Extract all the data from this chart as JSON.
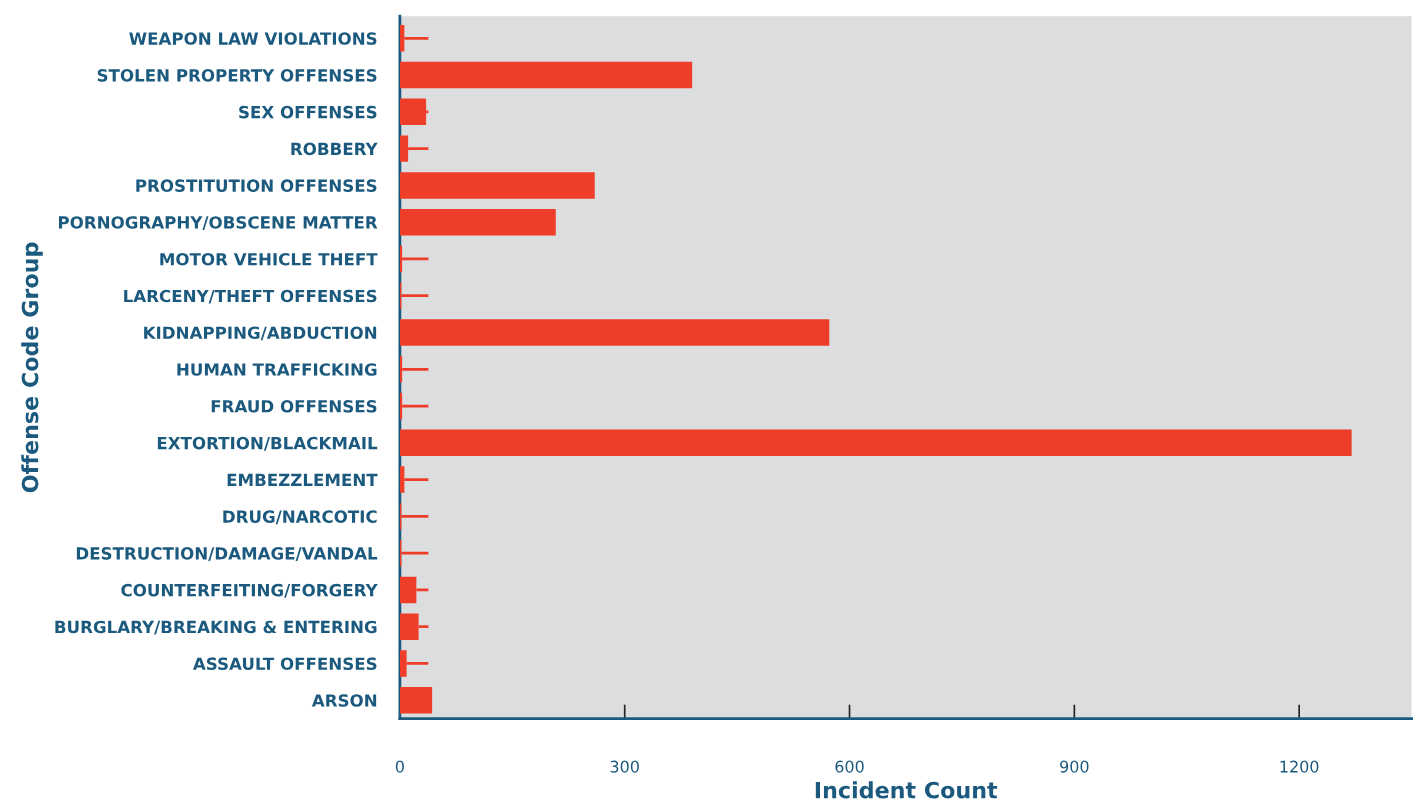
{
  "chart_data": {
    "type": "bar",
    "orientation": "horizontal",
    "xlabel": "Incident Count",
    "ylabel": "Offense Code Group",
    "categories": [
      "WEAPON LAW VIOLATIONS",
      "STOLEN PROPERTY OFFENSES",
      "SEX OFFENSES",
      "ROBBERY",
      "PROSTITUTION OFFENSES",
      "PORNOGRAPHY/OBSCENE MATTER",
      "MOTOR VEHICLE THEFT",
      "LARCENY/THEFT OFFENSES",
      "KIDNAPPING/ABDUCTION",
      "HUMAN TRAFFICKING",
      "FRAUD OFFENSES",
      "EXTORTION/BLACKMAIL",
      "EMBEZZLEMENT",
      "DRUG/NARCOTIC",
      "DESTRUCTION/DAMAGE/VANDAL",
      "COUNTERFEITING/FORGERY",
      "BURGLARY/BREAKING & ENTERING",
      "ASSAULT OFFENSES",
      "ARSON"
    ],
    "series": [
      {
        "color": "#ee3d28",
        "values": [
          6,
          390,
          35,
          11,
          260,
          208,
          3,
          2,
          573,
          3,
          3,
          1270,
          6,
          2,
          2,
          22,
          25,
          9,
          43
        ],
        "errors": [
          [
            6,
            38
          ],
          null,
          [
            35,
            38
          ],
          [
            11,
            38
          ],
          null,
          null,
          [
            3,
            38
          ],
          [
            2,
            38
          ],
          null,
          [
            3,
            38
          ],
          [
            3,
            38
          ],
          null,
          [
            6,
            38
          ],
          [
            2,
            38
          ],
          [
            2,
            38
          ],
          [
            22,
            38
          ],
          [
            25,
            38
          ],
          [
            9,
            38
          ],
          null
        ]
      }
    ],
    "xlim": [
      0,
      1350
    ],
    "xticks": [
      0,
      300,
      600,
      900,
      1200
    ],
    "grid": false,
    "legend": false
  }
}
